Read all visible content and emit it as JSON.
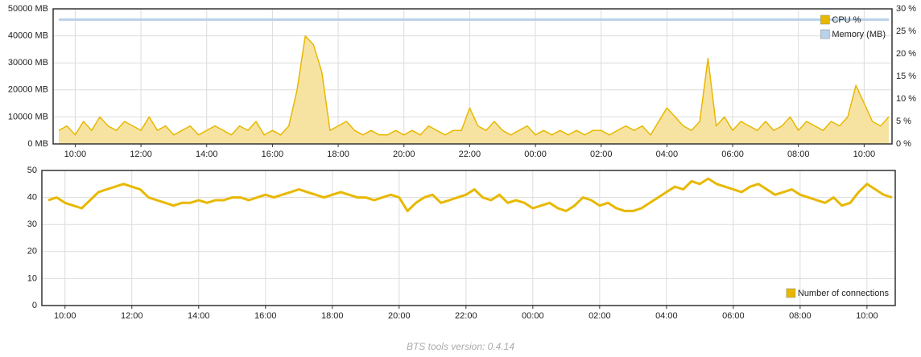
{
  "chart_data": [
    {
      "type": "line",
      "categories": [
        null,
        null,
        "10:00",
        null,
        null,
        null,
        null,
        null,
        null,
        null,
        "12:00",
        null,
        null,
        null,
        null,
        null,
        null,
        null,
        "14:00",
        null,
        null,
        null,
        null,
        null,
        null,
        null,
        "16:00",
        null,
        null,
        null,
        null,
        null,
        null,
        null,
        "18:00",
        null,
        null,
        null,
        null,
        null,
        null,
        null,
        "20:00",
        null,
        null,
        null,
        null,
        null,
        null,
        null,
        "22:00",
        null,
        null,
        null,
        null,
        null,
        null,
        null,
        "00:00",
        null,
        null,
        null,
        null,
        null,
        null,
        null,
        "02:00",
        null,
        null,
        null,
        null,
        null,
        null,
        null,
        "04:00",
        null,
        null,
        null,
        null,
        null,
        null,
        null,
        "06:00",
        null,
        null,
        null,
        null,
        null,
        null,
        null,
        "08:00",
        null,
        null,
        null,
        null,
        null,
        null,
        null,
        "10:00",
        null,
        null,
        null
      ],
      "series": [
        {
          "name": "CPU %",
          "color": "#e8b800",
          "fill": "#f7e3a1",
          "axis": "y2",
          "values": [
            3,
            4,
            2,
            5,
            3,
            6,
            4,
            3,
            5,
            4,
            3,
            6,
            3,
            4,
            2,
            3,
            4,
            2,
            3,
            4,
            3,
            2,
            4,
            3,
            5,
            2,
            3,
            2,
            4,
            12,
            24,
            22,
            16,
            3,
            4,
            5,
            3,
            2,
            3,
            2,
            2,
            3,
            2,
            3,
            2,
            4,
            3,
            2,
            3,
            3,
            8,
            4,
            3,
            5,
            3,
            2,
            3,
            4,
            2,
            3,
            2,
            3,
            2,
            3,
            2,
            3,
            3,
            2,
            3,
            4,
            3,
            4,
            2,
            5,
            8,
            6,
            4,
            3,
            5,
            19,
            4,
            6,
            3,
            5,
            4,
            3,
            5,
            3,
            4,
            6,
            3,
            5,
            4,
            3,
            5,
            4,
            6,
            13,
            9,
            5,
            4,
            6
          ]
        },
        {
          "name": "Memory (MB)",
          "color": "#b9d1ea",
          "axis": "y",
          "values": [
            46000,
            46000,
            46000,
            46000,
            46000,
            46000,
            46000,
            46000,
            46000,
            46000,
            46000,
            46000,
            46000,
            46000,
            46000,
            46000,
            46000,
            46000,
            46000,
            46000,
            46000,
            46000,
            46000,
            46000,
            46000,
            46000,
            46000,
            46000,
            46000,
            46000,
            46000,
            46000,
            46000,
            46000,
            46000,
            46000,
            46000,
            46000,
            46000,
            46000,
            46000,
            46000,
            46000,
            46000,
            46000,
            46000,
            46000,
            46000,
            46000,
            46000,
            46000,
            46000,
            46000,
            46000,
            46000,
            46000,
            46000,
            46000,
            46000,
            46000,
            46000,
            46000,
            46000,
            46000,
            46000,
            46000,
            46000,
            46000,
            46000,
            46000,
            46000,
            46000,
            46000,
            46000,
            46000,
            46000,
            46000,
            46000,
            46000,
            46000,
            46000,
            46000,
            46000,
            46000,
            46000,
            46000,
            46000,
            46000,
            46000,
            46000,
            46000,
            46000,
            46000,
            46000,
            46000,
            46000,
            46000,
            46000,
            46000,
            46000,
            46000,
            46000
          ]
        }
      ],
      "ylim": [
        0,
        50000
      ],
      "yticks": [
        {
          "value": 0,
          "label": "0 MB"
        },
        {
          "value": 10000,
          "label": "10000 MB"
        },
        {
          "value": 20000,
          "label": "20000 MB"
        },
        {
          "value": 30000,
          "label": "30000 MB"
        },
        {
          "value": 40000,
          "label": "40000 MB"
        },
        {
          "value": 50000,
          "label": "50000 MB"
        }
      ],
      "y2lim": [
        0,
        30
      ],
      "y2ticks": [
        {
          "value": 0,
          "label": "0 %"
        },
        {
          "value": 5,
          "label": "5 %"
        },
        {
          "value": 10,
          "label": "10 %"
        },
        {
          "value": 15,
          "label": "15 %"
        },
        {
          "value": 20,
          "label": "20 %"
        },
        {
          "value": 25,
          "label": "25 %"
        },
        {
          "value": 30,
          "label": "30 %"
        }
      ],
      "grid": true,
      "legend": "top-right"
    },
    {
      "type": "line",
      "categories": [
        null,
        null,
        "10:00",
        null,
        null,
        null,
        null,
        null,
        null,
        null,
        "12:00",
        null,
        null,
        null,
        null,
        null,
        null,
        null,
        "14:00",
        null,
        null,
        null,
        null,
        null,
        null,
        null,
        "16:00",
        null,
        null,
        null,
        null,
        null,
        null,
        null,
        "18:00",
        null,
        null,
        null,
        null,
        null,
        null,
        null,
        "20:00",
        null,
        null,
        null,
        null,
        null,
        null,
        null,
        "22:00",
        null,
        null,
        null,
        null,
        null,
        null,
        null,
        "00:00",
        null,
        null,
        null,
        null,
        null,
        null,
        null,
        "02:00",
        null,
        null,
        null,
        null,
        null,
        null,
        null,
        "04:00",
        null,
        null,
        null,
        null,
        null,
        null,
        null,
        "06:00",
        null,
        null,
        null,
        null,
        null,
        null,
        null,
        "08:00",
        null,
        null,
        null,
        null,
        null,
        null,
        null,
        "10:00",
        null,
        null,
        null
      ],
      "series": [
        {
          "name": "Number of connections",
          "color": "#e8b800",
          "axis": "y",
          "values": [
            39,
            40,
            38,
            37,
            36,
            39,
            42,
            43,
            44,
            45,
            44,
            43,
            40,
            39,
            38,
            37,
            38,
            38,
            39,
            38,
            39,
            39,
            40,
            40,
            39,
            40,
            41,
            40,
            41,
            42,
            43,
            42,
            41,
            40,
            41,
            42,
            41,
            40,
            40,
            39,
            40,
            41,
            40,
            35,
            38,
            40,
            41,
            38,
            39,
            40,
            41,
            43,
            40,
            39,
            41,
            38,
            39,
            38,
            36,
            37,
            38,
            36,
            35,
            37,
            40,
            39,
            37,
            38,
            36,
            35,
            35,
            36,
            38,
            40,
            42,
            44,
            43,
            46,
            45,
            47,
            45,
            44,
            43,
            42,
            44,
            45,
            43,
            41,
            42,
            43,
            41,
            40,
            39,
            38,
            40,
            37,
            38,
            42,
            45,
            43,
            41,
            40
          ]
        }
      ],
      "ylim": [
        0,
        50
      ],
      "yticks": [
        0,
        10,
        20,
        30,
        40,
        50
      ],
      "grid": true,
      "legend": "bottom-right"
    }
  ],
  "footer": "BTS tools version: 0.4.14"
}
